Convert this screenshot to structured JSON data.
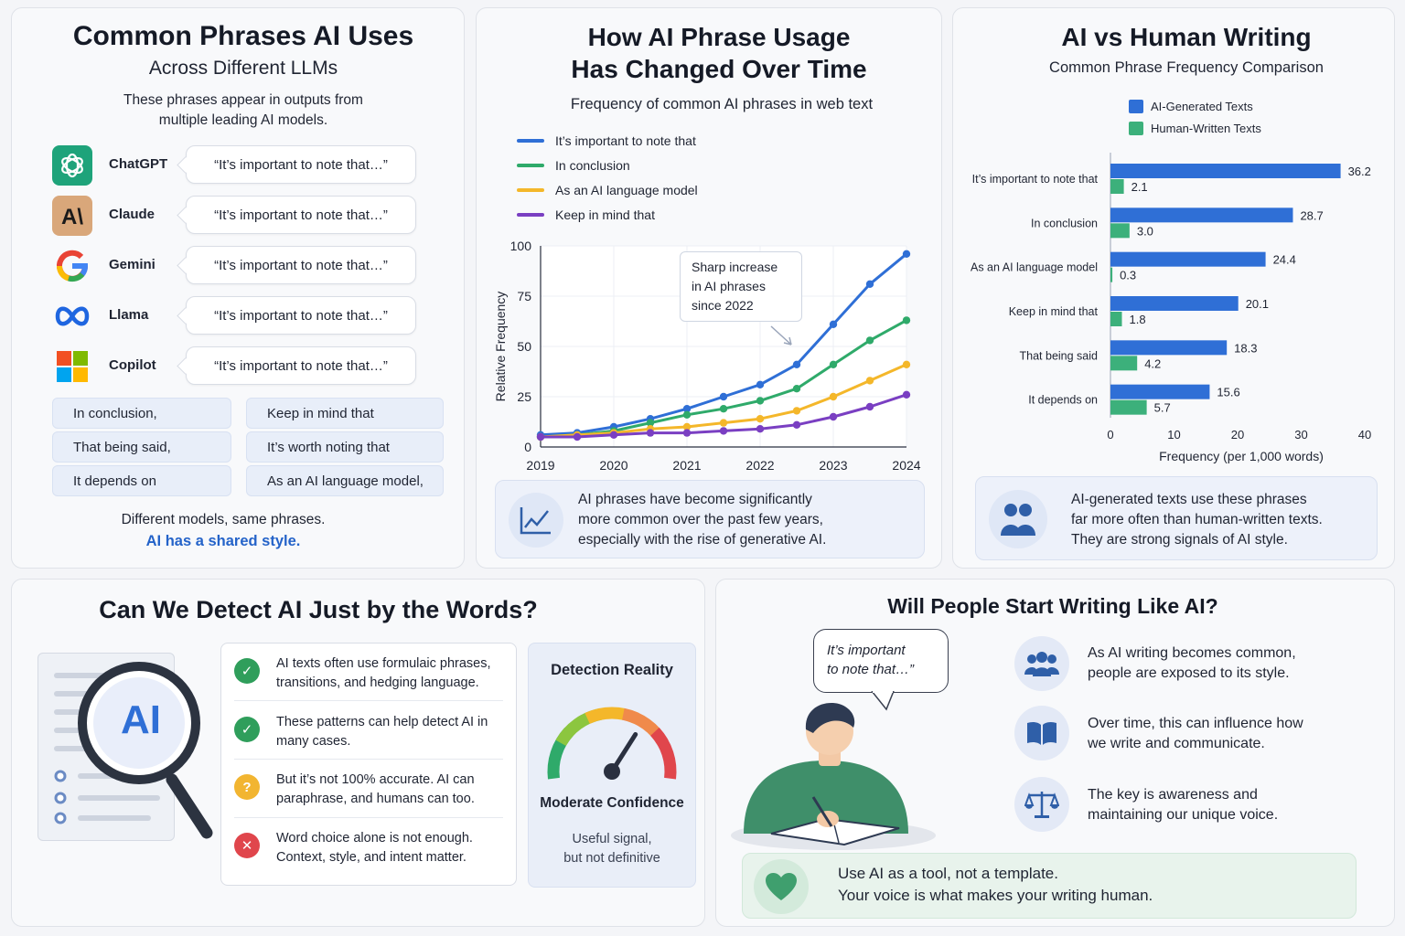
{
  "panel1": {
    "title": "Common Phrases AI Uses",
    "subtitle": "Across Different LLMs",
    "intro": [
      "These phrases appear in outputs from",
      "multiple leading AI models."
    ],
    "models": [
      {
        "name": "ChatGPT",
        "icon": "chatgpt-logo-icon",
        "quote": "“It’s important to note that…”"
      },
      {
        "name": "Claude",
        "icon": "claude-logo-icon",
        "quote": "“It’s important to note that…”"
      },
      {
        "name": "Gemini",
        "icon": "gemini-g-logo-icon",
        "quote": "“It’s important to note that…”"
      },
      {
        "name": "Llama",
        "icon": "meta-infinity-logo-icon",
        "quote": "“It’s important to note that…”"
      },
      {
        "name": "Copilot",
        "icon": "microsoft-squares-logo-icon",
        "quote": "“It’s important to note that…”"
      }
    ],
    "chips": [
      "In conclusion,",
      "Keep in mind that",
      "That being said,",
      "It’s worth noting that",
      "It depends on",
      "As an AI language model,"
    ],
    "footer": "Different models, same phrases.",
    "footer_emph": "AI has a shared style."
  },
  "panel2": {
    "title_line1": "How AI Phrase Usage",
    "title_line2": "Has Changed Over Time",
    "subtitle": "Frequency of common AI phrases in web text",
    "callout": [
      "Sharp increase",
      "in AI phrases",
      "since 2022"
    ],
    "note": [
      "AI phrases have become significantly",
      "more common over the past few years,",
      "especially with the rise of generative AI."
    ],
    "note_icon": "trend-chart-icon"
  },
  "panel3": {
    "title": "AI vs Human Writing",
    "subtitle": "Common Phrase Frequency Comparison",
    "note": [
      "AI-generated texts use these phrases",
      "far more often than human-written texts.",
      "They are strong signals of AI style."
    ],
    "note_icon": "people-icon"
  },
  "panel4": {
    "title": "Can We Detect AI Just by the Words?",
    "magnifier_text": "AI",
    "items": [
      {
        "icon": "check-icon",
        "color": "#2f9e5b",
        "glyph": "✓",
        "text": [
          "AI texts often use formulaic phrases,",
          "transitions, and hedging language."
        ]
      },
      {
        "icon": "check-icon",
        "color": "#2f9e5b",
        "glyph": "✓",
        "text": [
          "These patterns can help detect AI in",
          "many cases."
        ]
      },
      {
        "icon": "question-icon",
        "color": "#f2b531",
        "glyph": "?",
        "text": [
          "But it’s not 100% accurate. AI can",
          "paraphrase, and humans can too."
        ]
      },
      {
        "icon": "x-icon",
        "color": "#e0464c",
        "glyph": "✕",
        "text": [
          "Word choice alone is not enough.",
          "Context, style, and intent matter."
        ]
      }
    ],
    "gauge_title": "Detection Reality",
    "gauge_level": 0.68,
    "gauge_label": "Moderate Confidence",
    "gauge_note": [
      "Useful signal,",
      "but not definitive"
    ]
  },
  "panel5": {
    "title": "Will People Start Writing Like AI?",
    "speech": [
      "It’s important",
      "to note that…”"
    ],
    "items": [
      {
        "icon": "people-group-icon",
        "text": [
          "As AI writing becomes common,",
          "people are exposed to its style."
        ]
      },
      {
        "icon": "open-book-icon",
        "text": [
          "Over time, this can influence how",
          "we write and communicate."
        ]
      },
      {
        "icon": "balance-scale-icon",
        "text": [
          "The key is awareness and",
          "maintaining our unique voice."
        ]
      }
    ],
    "banner": [
      "Use AI as a tool, not a template.",
      "Your voice is what makes your writing human."
    ],
    "banner_icon": "heart-icon"
  },
  "colors": {
    "blue": "#2f6fd6",
    "green": "#2faa6a",
    "yellow": "#f4b72a",
    "purple": "#7a3fc2",
    "bar_ai": "#2f6fd6",
    "bar_human": "#3cb07b"
  },
  "chart_data": [
    {
      "type": "line",
      "x": [
        2019,
        2020,
        2021,
        2022,
        2023,
        2024
      ],
      "xlabel": "",
      "ylabel": "Relative Frequency",
      "ylim": [
        0,
        100
      ],
      "yticks": [
        0,
        25,
        50,
        75,
        100
      ],
      "grid": true,
      "legend": "top-left",
      "series": [
        {
          "name": "It’s important to note that",
          "color": "#2f6fd6",
          "x": [
            2019,
            2019.5,
            2020,
            2020.5,
            2021,
            2021.5,
            2022,
            2022.5,
            2023,
            2023.5,
            2024
          ],
          "values": [
            6,
            7,
            10,
            14,
            19,
            25,
            31,
            41,
            61,
            81,
            96
          ]
        },
        {
          "name": "In conclusion",
          "color": "#2faa6a",
          "x": [
            2019,
            2019.5,
            2020,
            2020.5,
            2021,
            2021.5,
            2022,
            2022.5,
            2023,
            2023.5,
            2024
          ],
          "values": [
            5,
            6,
            8,
            12,
            16,
            19,
            23,
            29,
            41,
            53,
            63
          ]
        },
        {
          "name": "As an AI language model",
          "color": "#f4b72a",
          "x": [
            2019,
            2019.5,
            2020,
            2020.5,
            2021,
            2021.5,
            2022,
            2022.5,
            2023,
            2023.5,
            2024
          ],
          "values": [
            5,
            6,
            7,
            9,
            10,
            12,
            14,
            18,
            25,
            33,
            41
          ]
        },
        {
          "name": "Keep in mind that",
          "color": "#7a3fc2",
          "x": [
            2019,
            2019.5,
            2020,
            2020.5,
            2021,
            2021.5,
            2022,
            2022.5,
            2023,
            2023.5,
            2024
          ],
          "values": [
            5,
            5,
            6,
            7,
            7,
            8,
            9,
            11,
            15,
            20,
            26
          ]
        }
      ]
    },
    {
      "type": "bar",
      "orientation": "horizontal",
      "categories": [
        "It’s important to note that",
        "In conclusion",
        "As an AI language model",
        "Keep in mind that",
        "That being said",
        "It depends on"
      ],
      "series": [
        {
          "name": "AI-Generated Texts",
          "color": "#2f6fd6",
          "values": [
            36.2,
            28.7,
            24.4,
            20.1,
            18.3,
            15.6
          ]
        },
        {
          "name": "Human-Written Texts",
          "color": "#3cb07b",
          "values": [
            2.1,
            3.0,
            0.3,
            1.8,
            4.2,
            5.7
          ]
        }
      ],
      "xlabel": "Frequency (per 1,000 words)",
      "xlim": [
        0,
        40
      ],
      "xticks": [
        0,
        10,
        20,
        30,
        40
      ],
      "legend": "top"
    }
  ]
}
